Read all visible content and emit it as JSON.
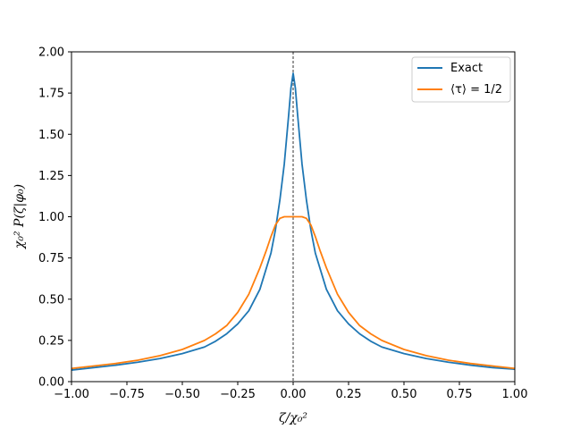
{
  "chart_data": {
    "type": "line",
    "xlabel": "ζ/χ₀²",
    "ylabel": "χ₀² P(ζ|φ₀)",
    "xlim": [
      -1.0,
      1.0
    ],
    "ylim": [
      0.0,
      2.0
    ],
    "xticks": [
      "−1.00",
      "−0.75",
      "−0.50",
      "−0.25",
      "0.00",
      "0.25",
      "0.50",
      "0.75",
      "1.00"
    ],
    "yticks": [
      "0.00",
      "0.25",
      "0.50",
      "0.75",
      "1.00",
      "1.25",
      "1.50",
      "1.75",
      "2.00"
    ],
    "xtick_values": [
      -1.0,
      -0.75,
      -0.5,
      -0.25,
      0.0,
      0.25,
      0.5,
      0.75,
      1.0
    ],
    "ytick_values": [
      0.0,
      0.25,
      0.5,
      0.75,
      1.0,
      1.25,
      1.5,
      1.75,
      2.0
    ],
    "reference_line": {
      "x": 0.0,
      "style": "dashed",
      "color": "#000000"
    },
    "legend_position": "top-right",
    "grid": false,
    "series": [
      {
        "name": "Exact",
        "color": "#1f77b4",
        "x": [
          -1.0,
          -0.9,
          -0.8,
          -0.7,
          -0.6,
          -0.5,
          -0.4,
          -0.35,
          -0.3,
          -0.25,
          -0.2,
          -0.15,
          -0.1,
          -0.08,
          -0.06,
          -0.04,
          -0.03,
          -0.02,
          -0.01,
          0.0,
          0.01,
          0.02,
          0.03,
          0.04,
          0.06,
          0.08,
          0.1,
          0.15,
          0.2,
          0.25,
          0.3,
          0.35,
          0.4,
          0.5,
          0.6,
          0.7,
          0.8,
          0.9,
          1.0
        ],
        "y": [
          0.07,
          0.085,
          0.1,
          0.118,
          0.14,
          0.17,
          0.21,
          0.245,
          0.29,
          0.35,
          0.43,
          0.56,
          0.78,
          0.92,
          1.1,
          1.32,
          1.47,
          1.62,
          1.78,
          1.87,
          1.78,
          1.62,
          1.47,
          1.32,
          1.1,
          0.92,
          0.78,
          0.56,
          0.43,
          0.35,
          0.29,
          0.245,
          0.21,
          0.17,
          0.14,
          0.118,
          0.1,
          0.085,
          0.075
        ]
      },
      {
        "name": "⟨τ⟩ = 1/2",
        "color": "#ff7f0e",
        "x": [
          -1.0,
          -0.9,
          -0.8,
          -0.7,
          -0.6,
          -0.5,
          -0.4,
          -0.35,
          -0.3,
          -0.25,
          -0.2,
          -0.15,
          -0.12,
          -0.1,
          -0.08,
          -0.06,
          -0.04,
          -0.03,
          -0.02,
          -0.01,
          0.0,
          0.01,
          0.02,
          0.03,
          0.04,
          0.06,
          0.08,
          0.1,
          0.12,
          0.15,
          0.2,
          0.25,
          0.3,
          0.35,
          0.4,
          0.5,
          0.6,
          0.7,
          0.8,
          0.9,
          1.0
        ],
        "y": [
          0.08,
          0.095,
          0.11,
          0.13,
          0.158,
          0.195,
          0.25,
          0.29,
          0.34,
          0.42,
          0.53,
          0.69,
          0.8,
          0.88,
          0.95,
          0.99,
          1.0,
          1.0,
          1.0,
          1.0,
          1.0,
          1.0,
          1.0,
          1.0,
          1.0,
          0.99,
          0.95,
          0.88,
          0.8,
          0.69,
          0.53,
          0.42,
          0.34,
          0.29,
          0.25,
          0.195,
          0.158,
          0.13,
          0.11,
          0.095,
          0.08
        ]
      }
    ]
  }
}
